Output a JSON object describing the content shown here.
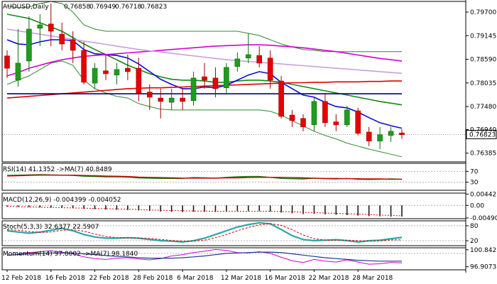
{
  "chart_data": [
    {
      "type": "candlestick",
      "panel": "price",
      "header": {
        "symbol": "AUDUSD,Daily",
        "ohlc": [
          "0.76858",
          "0.76949",
          "0.76718",
          "0.76823"
        ]
      },
      "current_price": "0.76823",
      "y_ticks": [
        "0.79700",
        "0.79145",
        "0.78590",
        "0.78035",
        "0.77480",
        "0.76940",
        "0.76385"
      ],
      "ylim": [
        0.7618,
        0.7995
      ],
      "x_labels": [
        "12 Feb 2018",
        "16 Feb 2018",
        "22 Feb 2018",
        "28 Feb 2018",
        "6 Mar 2018",
        "12 Mar 2018",
        "16 Mar 2018",
        "22 Mar 2018",
        "28 Mar 2018"
      ],
      "candles": [
        [
          0.7867,
          0.788,
          0.7815,
          0.7838
        ],
        [
          0.781,
          0.793,
          0.7795,
          0.785
        ],
        [
          0.7855,
          0.796,
          0.783,
          0.793
        ],
        [
          0.7932,
          0.7965,
          0.789,
          0.794
        ],
        [
          0.7942,
          0.799,
          0.789,
          0.7925
        ],
        [
          0.7918,
          0.7945,
          0.788,
          0.7895
        ],
        [
          0.7905,
          0.7925,
          0.785,
          0.788
        ],
        [
          0.788,
          0.79,
          0.78,
          0.7805
        ],
        [
          0.7803,
          0.785,
          0.779,
          0.7838
        ],
        [
          0.7832,
          0.787,
          0.781,
          0.7825
        ],
        [
          0.7822,
          0.785,
          0.78,
          0.7835
        ],
        [
          0.7838,
          0.787,
          0.781,
          0.783
        ],
        [
          0.7838,
          0.7862,
          0.776,
          0.778
        ],
        [
          0.7782,
          0.78,
          0.774,
          0.777
        ],
        [
          0.7768,
          0.779,
          0.772,
          0.776
        ],
        [
          0.7758,
          0.779,
          0.774,
          0.7768
        ],
        [
          0.7768,
          0.779,
          0.774,
          0.776
        ],
        [
          0.7762,
          0.783,
          0.775,
          0.7815
        ],
        [
          0.7818,
          0.785,
          0.779,
          0.781
        ],
        [
          0.7815,
          0.784,
          0.777,
          0.779
        ],
        [
          0.7792,
          0.785,
          0.778,
          0.784
        ],
        [
          0.7842,
          0.7875,
          0.783,
          0.786
        ],
        [
          0.7862,
          0.792,
          0.785,
          0.787
        ],
        [
          0.7868,
          0.789,
          0.784,
          0.785
        ],
        [
          0.7862,
          0.788,
          0.779,
          0.781
        ],
        [
          0.7808,
          0.782,
          0.772,
          0.7725
        ],
        [
          0.7728,
          0.774,
          0.77,
          0.7715
        ],
        [
          0.772,
          0.773,
          0.769,
          0.77
        ],
        [
          0.7705,
          0.777,
          0.769,
          0.776
        ],
        [
          0.776,
          0.778,
          0.77,
          0.771
        ],
        [
          0.7712,
          0.773,
          0.769,
          0.7705
        ],
        [
          0.7705,
          0.775,
          0.77,
          0.774
        ],
        [
          0.7738,
          0.7745,
          0.768,
          0.7685
        ],
        [
          0.7688,
          0.77,
          0.7655,
          0.7667
        ],
        [
          0.7667,
          0.77,
          0.7648,
          0.7682
        ],
        [
          0.768,
          0.77,
          0.7665,
          0.769
        ],
        [
          0.7686,
          0.7695,
          0.7672,
          0.7682
        ]
      ],
      "overlays": [
        {
          "name": "bb_upper",
          "color": "#2e8b2e",
          "values": [
            0.7985,
            0.798,
            0.7982,
            0.799,
            0.7995,
            0.799,
            0.797,
            0.794,
            0.793,
            0.7925,
            0.7925,
            0.7925,
            0.7925,
            0.7925,
            0.7925,
            0.7925,
            0.7925,
            0.7925,
            0.7925,
            0.7925,
            0.7925,
            0.7925,
            0.792,
            0.7915,
            0.7905,
            0.7895,
            0.7888,
            0.7882,
            0.788,
            0.7877,
            0.7877,
            0.7877,
            0.7877,
            0.7877,
            0.7877,
            0.7877,
            0.7877
          ]
        },
        {
          "name": "bb_lower",
          "color": "#2e8b2e",
          "values": [
            0.78,
            0.781,
            0.782,
            0.7835,
            0.785,
            0.7855,
            0.7845,
            0.781,
            0.779,
            0.778,
            0.7772,
            0.7768,
            0.7755,
            0.7748,
            0.7742,
            0.774,
            0.774,
            0.774,
            0.774,
            0.774,
            0.774,
            0.774,
            0.774,
            0.774,
            0.7737,
            0.7728,
            0.7715,
            0.7702,
            0.769,
            0.768,
            0.7672,
            0.7662,
            0.7655,
            0.7648,
            0.7642,
            0.7636,
            0.763
          ]
        },
        {
          "name": "sma_green",
          "color": "#148a14",
          "values": [
            0.7965,
            0.796,
            0.7955,
            0.7945,
            0.7935,
            0.7925,
            0.791,
            0.7895,
            0.7882,
            0.787,
            0.7858,
            0.7845,
            0.7835,
            0.7825,
            0.7818,
            0.7812,
            0.781,
            0.781,
            0.7808,
            0.7805,
            0.7805,
            0.7808,
            0.781,
            0.781,
            0.7808,
            0.7805,
            0.78,
            0.7795,
            0.779,
            0.7785,
            0.778,
            0.7775,
            0.777,
            0.7765,
            0.776,
            0.7756,
            0.7752
          ]
        },
        {
          "name": "ema_blue",
          "color": "#0a0ad7",
          "values": [
            0.7905,
            0.7895,
            0.7893,
            0.79,
            0.7905,
            0.7905,
            0.7903,
            0.7882,
            0.7872,
            0.787,
            0.7868,
            0.7862,
            0.7848,
            0.783,
            0.7812,
            0.78,
            0.779,
            0.779,
            0.7794,
            0.7792,
            0.7798,
            0.781,
            0.7822,
            0.783,
            0.7825,
            0.7805,
            0.779,
            0.7775,
            0.777,
            0.7758,
            0.7748,
            0.7745,
            0.7735,
            0.7722,
            0.771,
            0.7703,
            0.7697
          ]
        },
        {
          "name": "ma_magenta",
          "color": "#d400d4",
          "values": [
            0.782,
            0.7828,
            0.7838,
            0.7845,
            0.7852,
            0.7858,
            0.7862,
            0.7866,
            0.7868,
            0.787,
            0.7872,
            0.7874,
            0.7876,
            0.7878,
            0.788,
            0.7882,
            0.7884,
            0.7886,
            0.7888,
            0.789,
            0.7891,
            0.7892,
            0.7893,
            0.7893,
            0.7892,
            0.789,
            0.7888,
            0.7886,
            0.7883,
            0.788,
            0.7877,
            0.7873,
            0.7869,
            0.7865,
            0.7861,
            0.7858,
            0.7855
          ]
        },
        {
          "name": "ma_red",
          "color": "#e00000",
          "values": [
            0.7768,
            0.777,
            0.7772,
            0.7774,
            0.7776,
            0.7778,
            0.778,
            0.7782,
            0.7784,
            0.7786,
            0.7788,
            0.779,
            0.7791,
            0.7792,
            0.7792,
            0.7793,
            0.7794,
            0.7795,
            0.7796,
            0.7797,
            0.7798,
            0.7799,
            0.78,
            0.7801,
            0.7802,
            0.7803,
            0.7804,
            0.7804,
            0.7805,
            0.7805,
            0.7806,
            0.7806,
            0.7806,
            0.7807,
            0.7807,
            0.7808,
            0.7808
          ]
        },
        {
          "name": "ma_darkblue",
          "color": "#000080",
          "values": [
            0.7778,
            0.7778,
            0.7778,
            0.7778,
            0.7778,
            0.7778,
            0.7778,
            0.7778,
            0.7778,
            0.7778,
            0.7778,
            0.7778,
            0.7778,
            0.7778,
            0.7778,
            0.7778,
            0.7778,
            0.7778,
            0.7778,
            0.7778,
            0.7778,
            0.7778,
            0.7778,
            0.7778,
            0.7778,
            0.7778,
            0.7778,
            0.7778,
            0.7778,
            0.7778,
            0.7778,
            0.7778,
            0.7778,
            0.7778,
            0.7778,
            0.7778,
            0.7778
          ]
        },
        {
          "name": "ma_lavender",
          "color": "#c9a0dc",
          "values": [
            0.793,
            0.7926,
            0.7922,
            0.7918,
            0.7914,
            0.791,
            0.7906,
            0.7902,
            0.7898,
            0.7894,
            0.789,
            0.7886,
            0.7882,
            0.7879,
            0.7876,
            0.7873,
            0.787,
            0.7867,
            0.7864,
            0.7861,
            0.7858,
            0.7856,
            0.7854,
            0.7852,
            0.785,
            0.7848,
            0.7846,
            0.7844,
            0.7842,
            0.784,
            0.7838,
            0.7836,
            0.7834,
            0.7832,
            0.783,
            0.7828,
            0.7826
          ]
        }
      ]
    },
    {
      "type": "line",
      "panel": "rsi",
      "label": "RSI(14) 41.1352 ->MA(7) 40.8489",
      "y_ticks": [
        "70",
        "30"
      ],
      "ylim": [
        0,
        100
      ],
      "series": [
        {
          "name": "RSI(14)",
          "color": "#0b7a0b",
          "values": [
            55,
            56,
            57,
            58,
            57,
            56,
            55,
            52,
            51,
            50,
            50,
            49,
            46,
            45,
            44,
            44,
            44,
            47,
            46,
            45,
            48,
            50,
            51,
            51,
            48,
            44,
            43,
            42,
            45,
            43,
            42,
            44,
            41,
            40,
            41,
            42,
            41
          ]
        },
        {
          "name": "MA(7)",
          "color": "#d00000",
          "values": [
            53,
            54,
            55,
            56,
            56,
            56,
            56,
            55,
            54,
            53,
            52,
            51,
            49,
            48,
            47,
            46,
            45,
            45,
            45,
            45,
            46,
            46,
            47,
            48,
            48,
            48,
            47,
            46,
            45,
            44,
            44,
            43,
            43,
            42,
            42,
            41,
            41
          ]
        }
      ]
    },
    {
      "type": "bar",
      "panel": "macd",
      "label": "MACD(12,26,9) -0.004399 -0.004052",
      "y_ticks": [
        "0.004421",
        "0.00",
        "-0.004909"
      ],
      "ylim": [
        -0.0052,
        0.0048
      ],
      "series": [
        {
          "name": "MACD",
          "values": [
            -0.0005,
            -0.0006,
            -0.0007,
            -0.0008,
            -0.0009,
            -0.001,
            -0.0011,
            -0.0013,
            -0.0015,
            -0.0016,
            -0.0017,
            -0.0018,
            -0.002,
            -0.0022,
            -0.0024,
            -0.0025,
            -0.0026,
            -0.0025,
            -0.0025,
            -0.0026,
            -0.0025,
            -0.0023,
            -0.0022,
            -0.0022,
            -0.0024,
            -0.0028,
            -0.0031,
            -0.0034,
            -0.0033,
            -0.0035,
            -0.0037,
            -0.0038,
            -0.004,
            -0.0042,
            -0.0043,
            -0.0044,
            -0.0044
          ]
        },
        {
          "name": "Signal",
          "values": [
            -0.0004,
            -0.0005,
            -0.0006,
            -0.0007,
            -0.0008,
            -0.0009,
            -0.001,
            -0.0011,
            -0.0012,
            -0.0013,
            -0.0014,
            -0.0015,
            -0.0016,
            -0.0018,
            -0.0019,
            -0.002,
            -0.0021,
            -0.0022,
            -0.0022,
            -0.0023,
            -0.0023,
            -0.0023,
            -0.0023,
            -0.0023,
            -0.0023,
            -0.0024,
            -0.0025,
            -0.0027,
            -0.0028,
            -0.003,
            -0.0031,
            -0.0033,
            -0.0034,
            -0.0036,
            -0.0038,
            -0.0039,
            -0.0041
          ]
        }
      ]
    },
    {
      "type": "line",
      "panel": "stoch",
      "label": "Stoch(5,3,3) 32.6377 22.5907",
      "y_ticks": [
        "80",
        "20"
      ],
      "ylim": [
        0,
        100
      ],
      "series": [
        {
          "name": "%K",
          "color": "#2aa7a7",
          "values": [
            60,
            55,
            50,
            55,
            62,
            70,
            60,
            45,
            35,
            30,
            30,
            32,
            30,
            25,
            20,
            18,
            15,
            20,
            30,
            45,
            60,
            75,
            85,
            92,
            88,
            65,
            40,
            25,
            20,
            22,
            24,
            20,
            15,
            20,
            22,
            28,
            33
          ]
        },
        {
          "name": "%D",
          "color": "#d00000",
          "values": [
            65,
            62,
            57,
            53,
            55,
            62,
            64,
            58,
            47,
            37,
            32,
            31,
            31,
            29,
            25,
            21,
            18,
            18,
            22,
            32,
            45,
            60,
            73,
            84,
            88,
            82,
            64,
            43,
            28,
            22,
            22,
            22,
            20,
            18,
            19,
            23,
            23
          ]
        }
      ]
    },
    {
      "type": "line",
      "panel": "momentum",
      "label": "Momentum(14) 97.8002 ->MA(7) 98.1840",
      "y_ticks": [
        "100.8427",
        "96.9073"
      ],
      "ylim": [
        96.2,
        101.3
      ],
      "series": [
        {
          "name": "Momentum(14)",
          "color": "#cc00cc",
          "values": [
            99.5,
            99.8,
            100.2,
            100.4,
            100.6,
            100.3,
            99.9,
            99.2,
            98.8,
            98.6,
            98.9,
            99.0,
            98.7,
            98.5,
            98.8,
            99.4,
            99.7,
            100.2,
            100.5,
            100.9,
            100.7,
            100.2,
            100.1,
            100.4,
            100.0,
            99.1,
            98.3,
            97.9,
            98.6,
            98.2,
            98.0,
            98.5,
            98.0,
            97.5,
            97.6,
            97.9,
            97.8
          ]
        },
        {
          "name": "MA(7)",
          "color": "#1c3a8a",
          "values": [
            99.6,
            99.7,
            99.9,
            100.0,
            100.1,
            100.1,
            100.1,
            99.9,
            99.7,
            99.5,
            99.3,
            99.2,
            99.0,
            98.9,
            98.9,
            98.9,
            99.0,
            99.2,
            99.4,
            99.7,
            100.0,
            100.1,
            100.2,
            100.3,
            100.3,
            100.2,
            99.9,
            99.6,
            99.3,
            99.0,
            98.8,
            98.6,
            98.4,
            98.3,
            98.2,
            98.2,
            98.2
          ]
        }
      ]
    }
  ]
}
